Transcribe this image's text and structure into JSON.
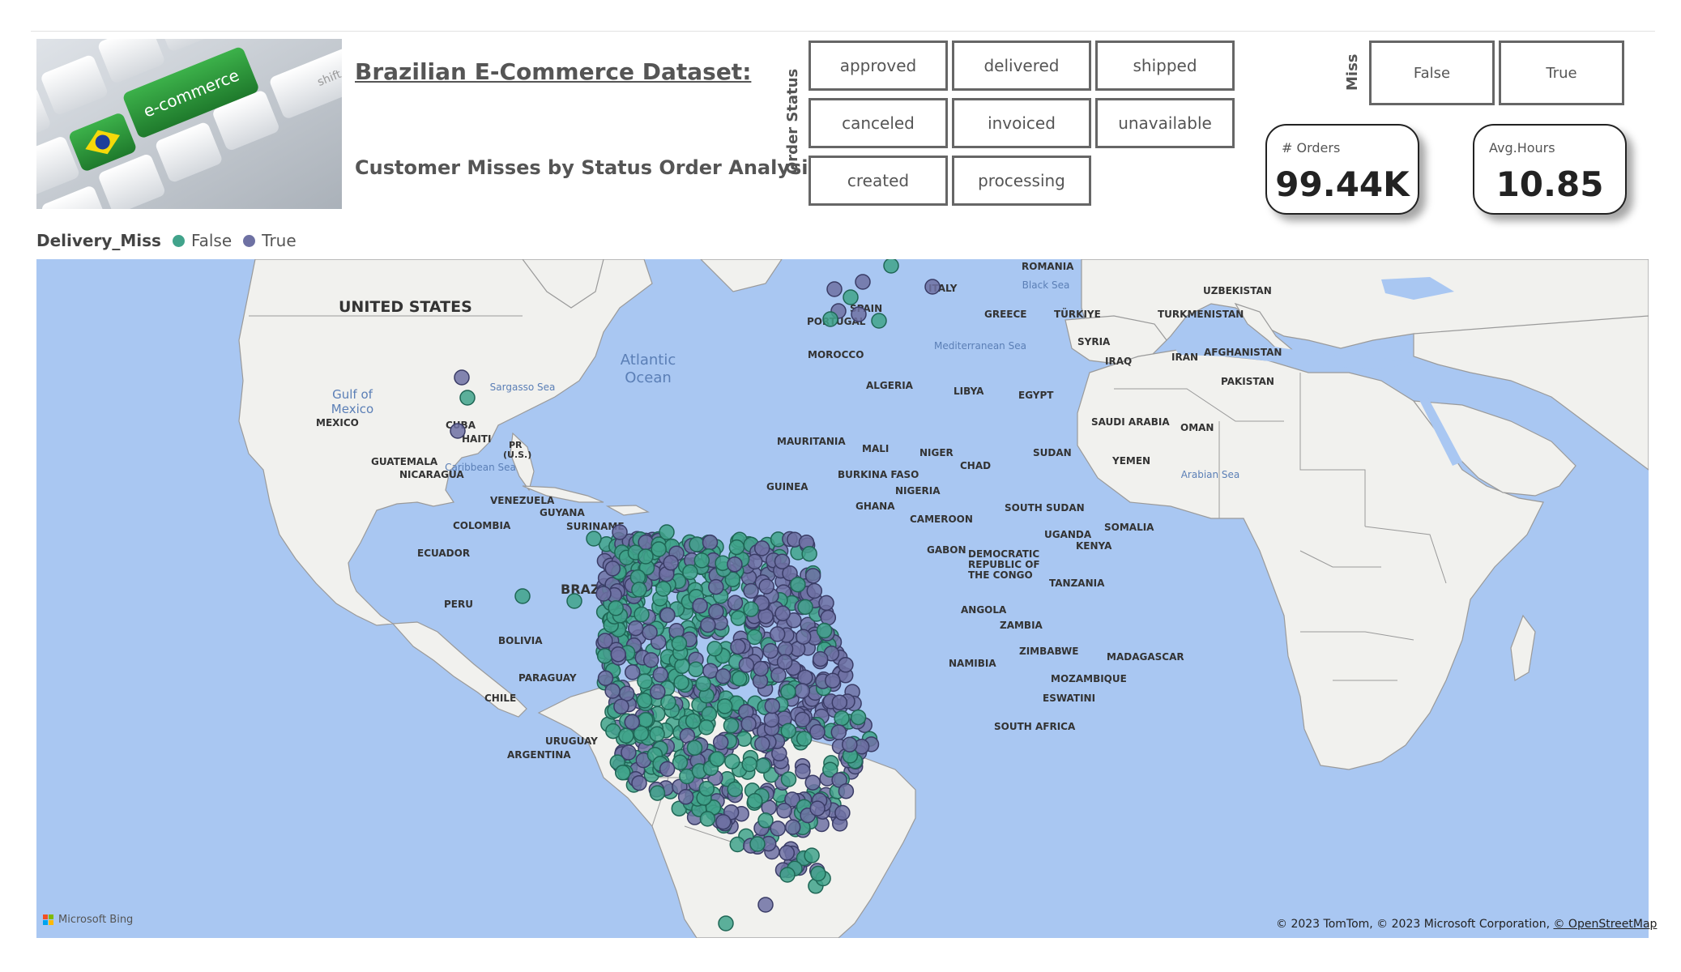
{
  "header": {
    "title": "Brazilian E-Commerce Dataset:",
    "subtitle": "Customer Misses by Status Order Analysis",
    "hero_key_label": "e-commerce",
    "hero_key_side": "shift"
  },
  "order_status": {
    "label": "Order Status",
    "options": [
      "approved",
      "delivered",
      "shipped",
      "canceled",
      "invoiced",
      "unavailable",
      "created",
      "processing"
    ]
  },
  "miss_slicer": {
    "label": "Miss",
    "options": [
      "False",
      "True"
    ]
  },
  "kpis": {
    "orders": {
      "label": "# Orders",
      "value": "99.44K"
    },
    "avg_hours": {
      "label": "Avg.Hours",
      "value": "10.85"
    }
  },
  "legend": {
    "title": "Delivery_Miss",
    "items": [
      {
        "label": "False",
        "color": "#41a38b"
      },
      {
        "label": "True",
        "color": "#6e71a3"
      }
    ]
  },
  "map": {
    "ocean_color": "#a9c7f2",
    "land_color": "#f1f1ee",
    "country_labels": [
      "UNITED STATES",
      "MEXICO",
      "CUBA",
      "HAITI",
      "PR (U.S.)",
      "GUATEMALA",
      "NICARAGUA",
      "VENEZUELA",
      "GUYANA",
      "SURINAME",
      "COLOMBIA",
      "ECUADOR",
      "PERU",
      "BRAZIL",
      "BOLIVIA",
      "PARAGUAY",
      "CHILE",
      "URUGUAY",
      "ARGENTINA",
      "ROMANIA",
      "ITALY",
      "SPAIN",
      "PORTUGAL",
      "GREECE",
      "TÜRKIYE",
      "UZBEKISTAN",
      "TURKMENISTAN",
      "SYRIA",
      "IRAQ",
      "IRAN",
      "AFGHANISTAN",
      "PAKISTAN",
      "MOROCCO",
      "ALGERIA",
      "LIBYA",
      "EGYPT",
      "SAUDI ARABIA",
      "OMAN",
      "YEMEN",
      "MAURITANIA",
      "MALI",
      "NIGER",
      "CHAD",
      "SUDAN",
      "BURKINA FASO",
      "GUINEA",
      "GHANA",
      "NIGERIA",
      "CAMEROON",
      "SOUTH SUDAN",
      "SOMALIA",
      "UGANDA",
      "KENYA",
      "GABON",
      "DEMOCRATIC REPUBLIC OF THE CONGO",
      "TANZANIA",
      "ANGOLA",
      "ZAMBIA",
      "ZIMBABWE",
      "MADAGASCAR",
      "NAMIBIA",
      "MOZAMBIQUE",
      "ESWATINI",
      "SOUTH AFRICA"
    ],
    "sea_labels": [
      "Atlantic Ocean",
      "Gulf of Mexico",
      "Sargasso Sea",
      "Caribbean Sea",
      "Black Sea",
      "Mediterranean Sea",
      "Arabian Sea"
    ],
    "branding": "Microsoft Bing",
    "copyright": "© 2023 TomTom, © 2023 Microsoft Corporation,",
    "osm_link": "© OpenStreetMap"
  }
}
